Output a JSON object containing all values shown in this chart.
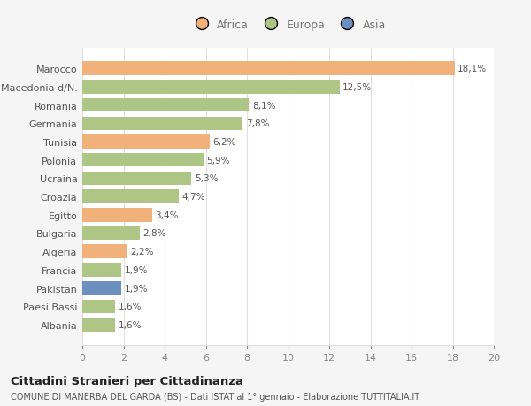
{
  "categories": [
    "Albania",
    "Paesi Bassi",
    "Pakistan",
    "Francia",
    "Algeria",
    "Bulgaria",
    "Egitto",
    "Croazia",
    "Ucraina",
    "Polonia",
    "Tunisia",
    "Germania",
    "Romania",
    "Macedonia d/N.",
    "Marocco"
  ],
  "values": [
    1.6,
    1.6,
    1.9,
    1.9,
    2.2,
    2.8,
    3.4,
    4.7,
    5.3,
    5.9,
    6.2,
    7.8,
    8.1,
    12.5,
    18.1
  ],
  "labels": [
    "1,6%",
    "1,6%",
    "1,9%",
    "1,9%",
    "2,2%",
    "2,8%",
    "3,4%",
    "4,7%",
    "5,3%",
    "5,9%",
    "6,2%",
    "7,8%",
    "8,1%",
    "12,5%",
    "18,1%"
  ],
  "colors": [
    "#aec685",
    "#aec685",
    "#6b8fbf",
    "#aec685",
    "#f0b27a",
    "#aec685",
    "#f0b27a",
    "#aec685",
    "#aec685",
    "#aec685",
    "#f0b27a",
    "#aec685",
    "#aec685",
    "#aec685",
    "#f0b27a"
  ],
  "africa_color": "#f0b27a",
  "europa_color": "#aec685",
  "asia_color": "#6b8fbf",
  "title": "Cittadini Stranieri per Cittadinanza",
  "subtitle": "COMUNE DI MANERBA DEL GARDA (BS) - Dati ISTAT al 1° gennaio - Elaborazione TUTTITALIA.IT",
  "xlim": [
    0,
    20
  ],
  "xticks": [
    0,
    2,
    4,
    6,
    8,
    10,
    12,
    14,
    16,
    18,
    20
  ],
  "background_color": "#f5f5f5",
  "bar_background": "#ffffff",
  "grid_color": "#e0e0e0"
}
